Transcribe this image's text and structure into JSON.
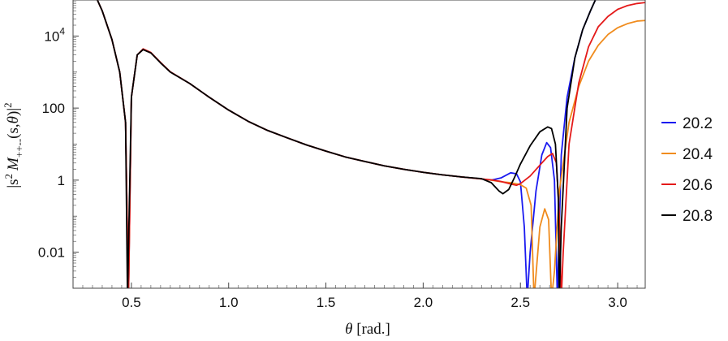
{
  "chart_data": {
    "type": "line",
    "xlabel": "θ [rad.]",
    "ylabel": "|s² M₊₊₋₋(s, θ)|²",
    "ylabel_parts": {
      "open": "|s",
      "power": "2",
      "M": "M",
      "sub": "++--",
      "args": "(s,",
      "theta": "θ",
      "close": ")|",
      "sq": "2"
    },
    "xlabel_parts": {
      "theta": "θ",
      "unit": "[rad.]"
    },
    "xlim": [
      0.2,
      3.14159
    ],
    "ylim": [
      0.001,
      100000
    ],
    "yscale": "log",
    "x_ticks": [
      "0.5",
      "1.0",
      "1.5",
      "2.0",
      "2.5",
      "3.0"
    ],
    "x_tick_values": [
      0.5,
      1.0,
      1.5,
      2.0,
      2.5,
      3.0
    ],
    "y_ticks": [
      "10⁴",
      "100",
      "1",
      "0.01"
    ],
    "y_tick_base": "10",
    "y_tick_exp": "4",
    "y_tick_values": [
      10000,
      100,
      1,
      0.01
    ],
    "legend_position": "right",
    "series": [
      {
        "name": "20.2",
        "color": "#1a1af0",
        "points": [
          [
            0.3,
            200000
          ],
          [
            0.35,
            50000
          ],
          [
            0.4,
            8000
          ],
          [
            0.44,
            1000
          ],
          [
            0.47,
            40
          ],
          [
            0.485,
            0.0005
          ],
          [
            0.5,
            200
          ],
          [
            0.53,
            3000
          ],
          [
            0.56,
            4200
          ],
          [
            0.6,
            3400
          ],
          [
            0.65,
            1800
          ],
          [
            0.7,
            1000
          ],
          [
            0.8,
            480
          ],
          [
            0.9,
            200
          ],
          [
            1.0,
            88
          ],
          [
            1.1,
            43
          ],
          [
            1.2,
            24
          ],
          [
            1.3,
            15
          ],
          [
            1.4,
            9.5
          ],
          [
            1.5,
            6.4
          ],
          [
            1.6,
            4.4
          ],
          [
            1.7,
            3.3
          ],
          [
            1.8,
            2.5
          ],
          [
            1.9,
            2.0
          ],
          [
            2.0,
            1.65
          ],
          [
            2.1,
            1.4
          ],
          [
            2.2,
            1.22
          ],
          [
            2.3,
            1.08
          ],
          [
            2.35,
            1.0
          ],
          [
            2.4,
            1.15
          ],
          [
            2.45,
            1.6
          ],
          [
            2.48,
            1.5
          ],
          [
            2.5,
            0.9
          ],
          [
            2.52,
            0.05
          ],
          [
            2.535,
            0.0005
          ],
          [
            2.55,
            0.01
          ],
          [
            2.58,
            0.5
          ],
          [
            2.61,
            5
          ],
          [
            2.635,
            11
          ],
          [
            2.655,
            8
          ],
          [
            2.675,
            1
          ],
          [
            2.69,
            0.0005
          ],
          [
            2.71,
            5
          ],
          [
            2.74,
            200
          ],
          [
            2.78,
            2500
          ],
          [
            2.82,
            15000
          ],
          [
            2.86,
            50000
          ],
          [
            2.9,
            150000
          ]
        ]
      },
      {
        "name": "20.4",
        "color": "#f08c1e",
        "points": [
          [
            0.3,
            200000
          ],
          [
            0.35,
            50000
          ],
          [
            0.4,
            8000
          ],
          [
            0.44,
            1000
          ],
          [
            0.47,
            40
          ],
          [
            0.485,
            0.0005
          ],
          [
            0.5,
            200
          ],
          [
            0.53,
            3000
          ],
          [
            0.56,
            4200
          ],
          [
            0.6,
            3400
          ],
          [
            0.65,
            1800
          ],
          [
            0.7,
            1000
          ],
          [
            0.8,
            480
          ],
          [
            0.9,
            200
          ],
          [
            1.0,
            88
          ],
          [
            1.1,
            43
          ],
          [
            1.2,
            24
          ],
          [
            1.3,
            15
          ],
          [
            1.4,
            9.5
          ],
          [
            1.5,
            6.4
          ],
          [
            1.6,
            4.4
          ],
          [
            1.7,
            3.3
          ],
          [
            1.8,
            2.5
          ],
          [
            1.9,
            2.0
          ],
          [
            2.0,
            1.65
          ],
          [
            2.1,
            1.4
          ],
          [
            2.2,
            1.22
          ],
          [
            2.3,
            1.08
          ],
          [
            2.35,
            1.0
          ],
          [
            2.4,
            0.9
          ],
          [
            2.45,
            0.85
          ],
          [
            2.5,
            0.75
          ],
          [
            2.53,
            0.6
          ],
          [
            2.555,
            0.2
          ],
          [
            2.57,
            0.0005
          ],
          [
            2.585,
            0.005
          ],
          [
            2.6,
            0.05
          ],
          [
            2.625,
            0.16
          ],
          [
            2.645,
            0.08
          ],
          [
            2.66,
            0.0005
          ],
          [
            2.675,
            0.003
          ],
          [
            2.7,
            0.5
          ],
          [
            2.75,
            40
          ],
          [
            2.8,
            400
          ],
          [
            2.85,
            2000
          ],
          [
            2.9,
            5500
          ],
          [
            2.95,
            11000
          ],
          [
            3.0,
            17000
          ],
          [
            3.05,
            22000
          ],
          [
            3.1,
            26000
          ],
          [
            3.14159,
            27000
          ]
        ]
      },
      {
        "name": "20.6",
        "color": "#e41a1a",
        "points": [
          [
            0.3,
            200000
          ],
          [
            0.35,
            50000
          ],
          [
            0.4,
            8000
          ],
          [
            0.44,
            1000
          ],
          [
            0.47,
            40
          ],
          [
            0.485,
            0.0005
          ],
          [
            0.5,
            200
          ],
          [
            0.53,
            3000
          ],
          [
            0.56,
            4400
          ],
          [
            0.6,
            3500
          ],
          [
            0.65,
            1850
          ],
          [
            0.7,
            1020
          ],
          [
            0.8,
            480
          ],
          [
            0.9,
            200
          ],
          [
            1.0,
            88
          ],
          [
            1.1,
            43
          ],
          [
            1.2,
            24
          ],
          [
            1.3,
            15
          ],
          [
            1.4,
            9.5
          ],
          [
            1.5,
            6.4
          ],
          [
            1.6,
            4.4
          ],
          [
            1.7,
            3.3
          ],
          [
            1.8,
            2.5
          ],
          [
            1.9,
            2.0
          ],
          [
            2.0,
            1.65
          ],
          [
            2.1,
            1.4
          ],
          [
            2.2,
            1.22
          ],
          [
            2.3,
            1.08
          ],
          [
            2.35,
            1.02
          ],
          [
            2.4,
            0.92
          ],
          [
            2.45,
            0.78
          ],
          [
            2.48,
            0.72
          ],
          [
            2.5,
            0.8
          ],
          [
            2.55,
            1.3
          ],
          [
            2.6,
            2.6
          ],
          [
            2.64,
            4.5
          ],
          [
            2.665,
            5.5
          ],
          [
            2.685,
            3
          ],
          [
            2.7,
            0.1
          ],
          [
            2.71,
            0.0005
          ],
          [
            2.72,
            0.01
          ],
          [
            2.75,
            10
          ],
          [
            2.8,
            500
          ],
          [
            2.85,
            5000
          ],
          [
            2.9,
            18000
          ],
          [
            2.95,
            35000
          ],
          [
            3.0,
            55000
          ],
          [
            3.05,
            70000
          ],
          [
            3.1,
            80000
          ],
          [
            3.14159,
            85000
          ]
        ]
      },
      {
        "name": "20.8",
        "color": "#000000",
        "points": [
          [
            0.3,
            200000
          ],
          [
            0.35,
            50000
          ],
          [
            0.4,
            8000
          ],
          [
            0.44,
            1000
          ],
          [
            0.47,
            40
          ],
          [
            0.48,
            0.0005
          ],
          [
            0.5,
            200
          ],
          [
            0.53,
            3000
          ],
          [
            0.56,
            4200
          ],
          [
            0.6,
            3400
          ],
          [
            0.65,
            1800
          ],
          [
            0.7,
            1000
          ],
          [
            0.8,
            480
          ],
          [
            0.9,
            200
          ],
          [
            1.0,
            88
          ],
          [
            1.1,
            43
          ],
          [
            1.2,
            24
          ],
          [
            1.3,
            15
          ],
          [
            1.4,
            9.5
          ],
          [
            1.5,
            6.4
          ],
          [
            1.6,
            4.4
          ],
          [
            1.7,
            3.3
          ],
          [
            1.8,
            2.5
          ],
          [
            1.9,
            2.0
          ],
          [
            2.0,
            1.65
          ],
          [
            2.1,
            1.4
          ],
          [
            2.2,
            1.22
          ],
          [
            2.3,
            1.1
          ],
          [
            2.35,
            0.85
          ],
          [
            2.39,
            0.5
          ],
          [
            2.41,
            0.42
          ],
          [
            2.44,
            0.55
          ],
          [
            2.47,
            1.2
          ],
          [
            2.5,
            2.8
          ],
          [
            2.55,
            9
          ],
          [
            2.6,
            22
          ],
          [
            2.64,
            30
          ],
          [
            2.66,
            27
          ],
          [
            2.68,
            10
          ],
          [
            2.695,
            0.3
          ],
          [
            2.7,
            0.0005
          ],
          [
            2.71,
            0.05
          ],
          [
            2.74,
            100
          ],
          [
            2.78,
            2500
          ],
          [
            2.82,
            15000
          ],
          [
            2.86,
            50000
          ],
          [
            2.9,
            150000
          ]
        ]
      }
    ]
  }
}
